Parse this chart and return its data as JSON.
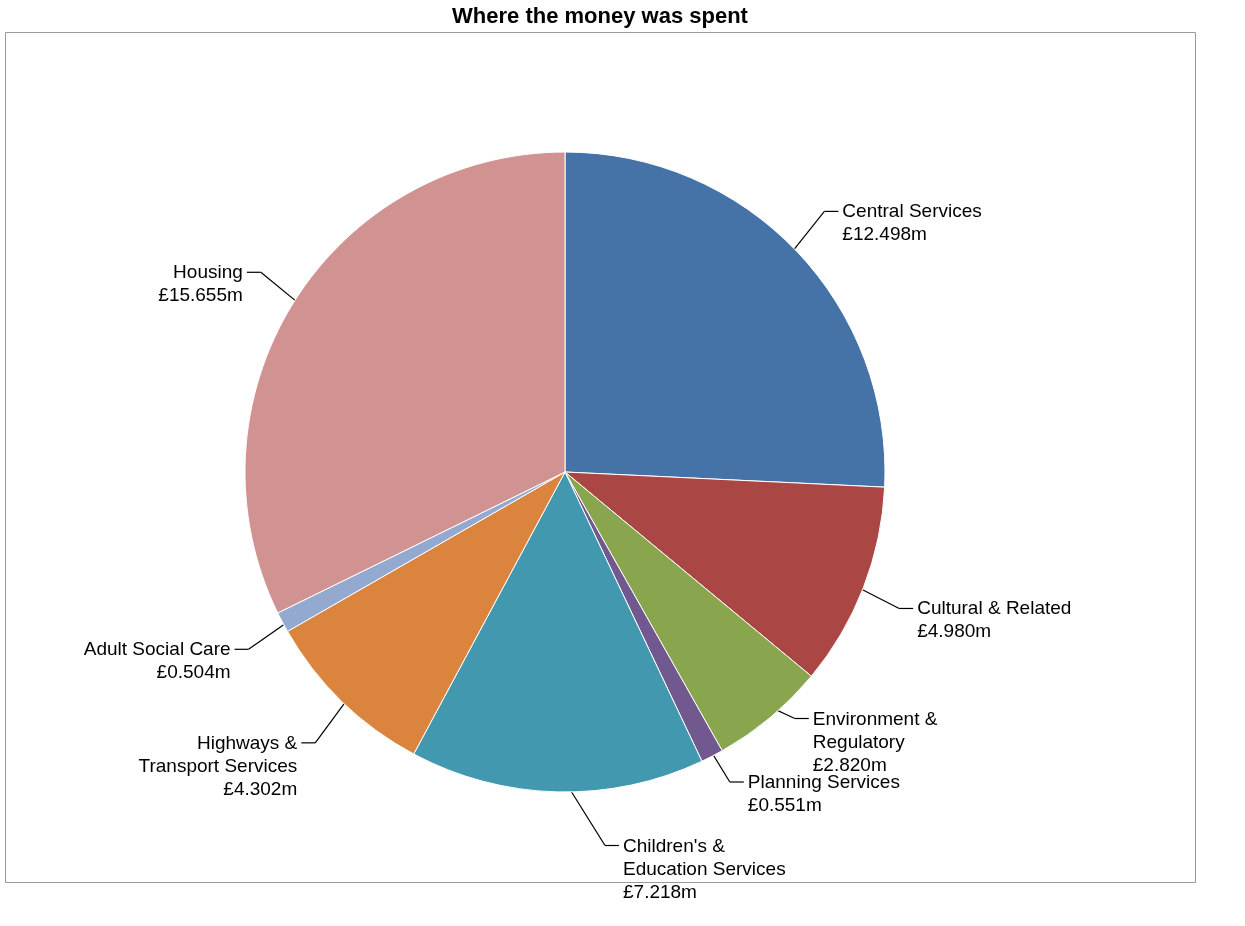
{
  "chart_data": {
    "type": "pie",
    "title": "Where the money was spent",
    "categories": [
      "Central Services",
      "Cultural & Related",
      "Environment & Regulatory",
      "Planning Services",
      "Children's & Education Services",
      "Highways & Transport Services",
      "Adult Social Care",
      "Housing"
    ],
    "values": [
      12.498,
      4.98,
      2.82,
      0.551,
      7.218,
      4.302,
      0.504,
      15.655
    ],
    "value_labels": [
      "£12.498m",
      "£4.980m",
      "£2.820m",
      "£0.551m",
      "£7.218m",
      "£4.302m",
      "£0.504m",
      "£15.655m"
    ],
    "colors": [
      "#4572a7",
      "#aa4643",
      "#89a54e",
      "#71588f",
      "#4198af",
      "#db843d",
      "#93a9cf",
      "#d19392"
    ],
    "legend": false
  }
}
